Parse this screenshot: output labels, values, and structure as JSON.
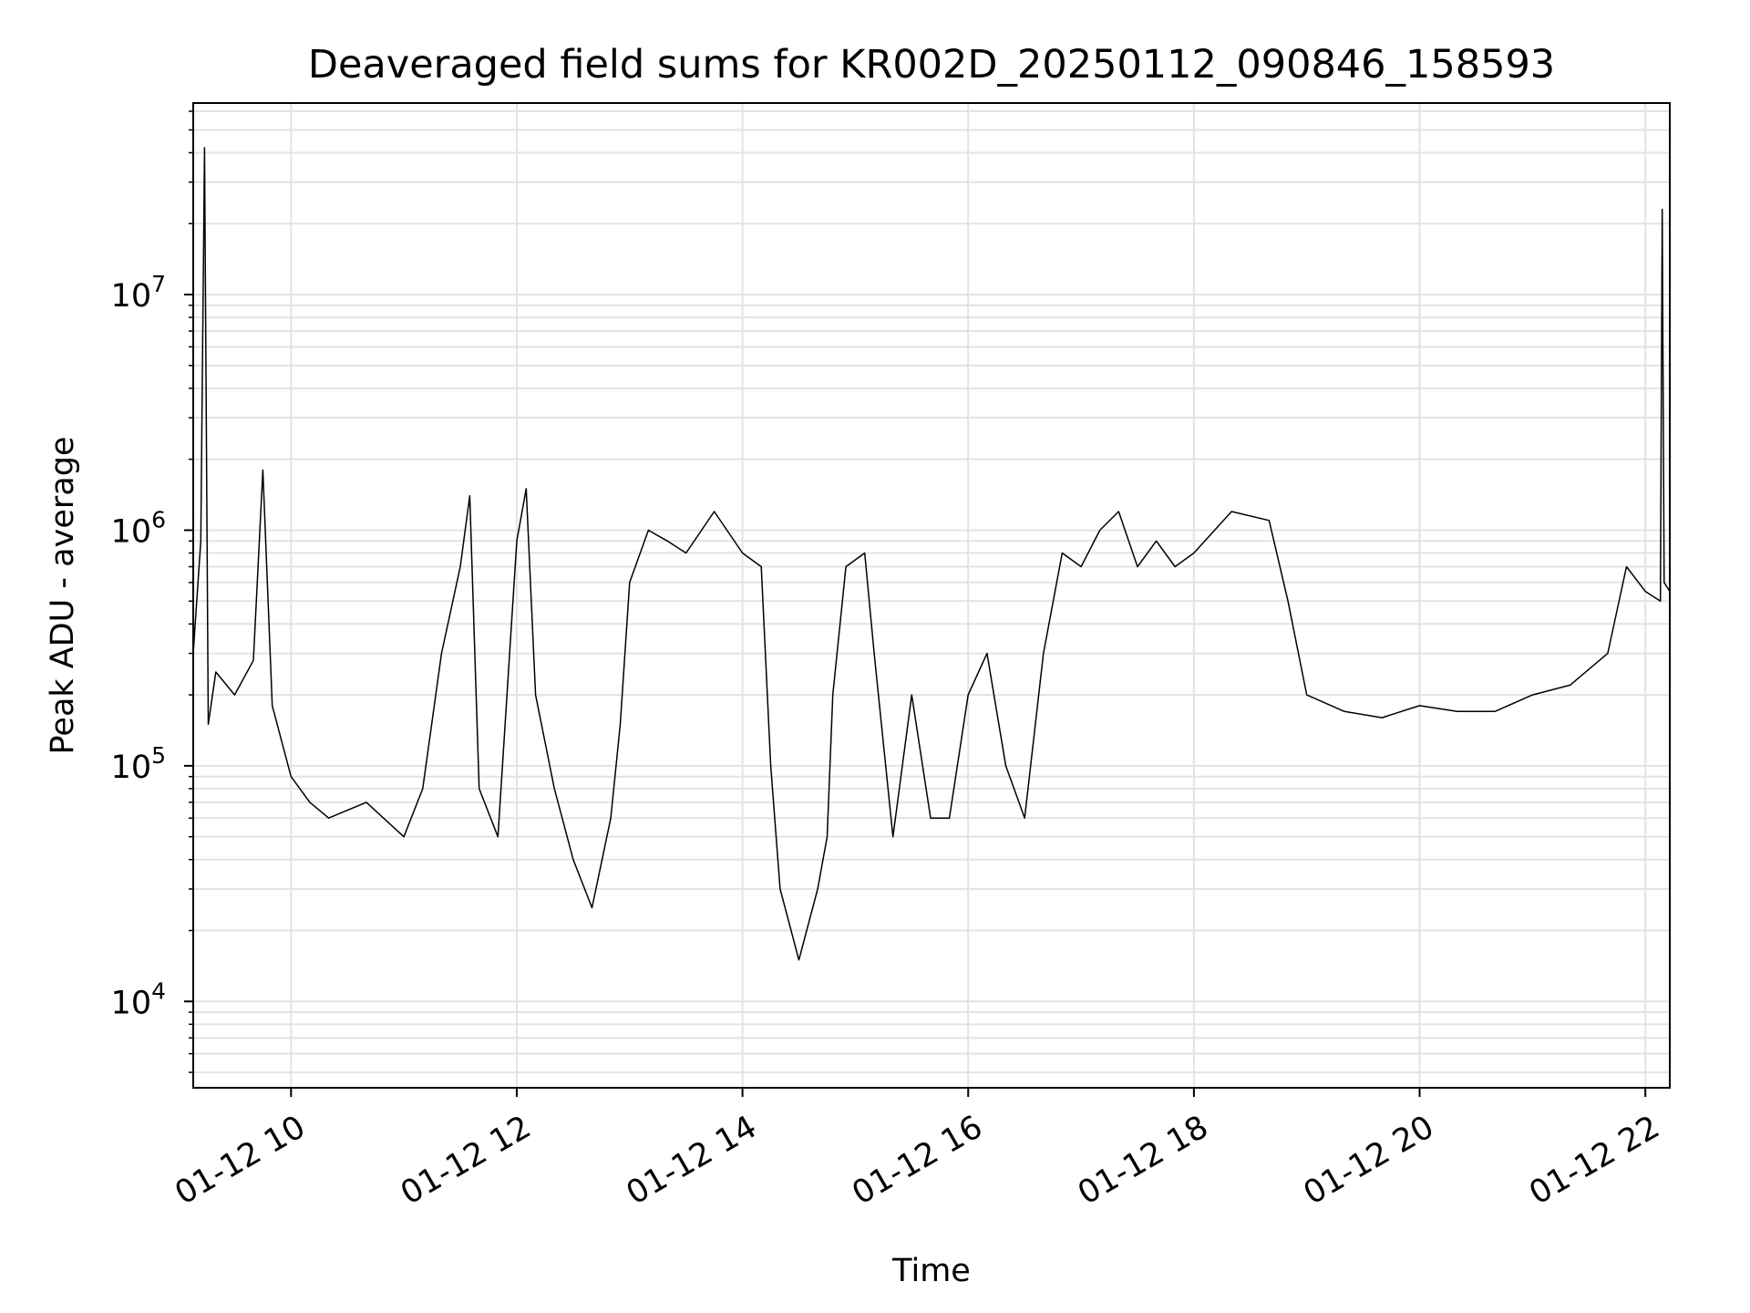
{
  "chart_data": {
    "type": "line",
    "title": "Deaveraged field sums for KR002D_20250112_090846_158593",
    "xlabel": "Time",
    "ylabel": "Peak ADU - average",
    "xlim": [
      "2025-01-12T09:08",
      "2025-01-12T22:13"
    ],
    "ylim": [
      4300,
      65000000
    ],
    "yscale": "log",
    "grid": true,
    "line_color": "#000000",
    "x_ticks": [
      {
        "value": "2025-01-12T10:00",
        "label": "01-12 10"
      },
      {
        "value": "2025-01-12T12:00",
        "label": "01-12 12"
      },
      {
        "value": "2025-01-12T14:00",
        "label": "01-12 14"
      },
      {
        "value": "2025-01-12T16:00",
        "label": "01-12 16"
      },
      {
        "value": "2025-01-12T18:00",
        "label": "01-12 18"
      },
      {
        "value": "2025-01-12T20:00",
        "label": "01-12 20"
      },
      {
        "value": "2025-01-12T22:00",
        "label": "01-12 22"
      }
    ],
    "y_ticks": [
      {
        "value": 10000,
        "base": "10",
        "exp": "4"
      },
      {
        "value": 100000,
        "base": "10",
        "exp": "5"
      },
      {
        "value": 1000000,
        "base": "10",
        "exp": "6"
      },
      {
        "value": 10000000,
        "base": "10",
        "exp": "7"
      }
    ],
    "series": [
      {
        "values": [
          [
            "2025-01-12T09:08",
            300000
          ],
          [
            "2025-01-12T09:12",
            900000
          ],
          [
            "2025-01-12T09:14",
            42000000
          ],
          [
            "2025-01-12T09:16",
            150000
          ],
          [
            "2025-01-12T09:20",
            250000
          ],
          [
            "2025-01-12T09:30",
            200000
          ],
          [
            "2025-01-12T09:40",
            280000
          ],
          [
            "2025-01-12T09:45",
            1800000
          ],
          [
            "2025-01-12T09:50",
            180000
          ],
          [
            "2025-01-12T10:00",
            90000
          ],
          [
            "2025-01-12T10:10",
            70000
          ],
          [
            "2025-01-12T10:20",
            60000
          ],
          [
            "2025-01-12T10:40",
            70000
          ],
          [
            "2025-01-12T11:00",
            50000
          ],
          [
            "2025-01-12T11:10",
            80000
          ],
          [
            "2025-01-12T11:20",
            300000
          ],
          [
            "2025-01-12T11:30",
            700000
          ],
          [
            "2025-01-12T11:35",
            1400000
          ],
          [
            "2025-01-12T11:40",
            80000
          ],
          [
            "2025-01-12T11:50",
            50000
          ],
          [
            "2025-01-12T12:00",
            900000
          ],
          [
            "2025-01-12T12:05",
            1500000
          ],
          [
            "2025-01-12T12:10",
            200000
          ],
          [
            "2025-01-12T12:20",
            80000
          ],
          [
            "2025-01-12T12:30",
            40000
          ],
          [
            "2025-01-12T12:40",
            25000
          ],
          [
            "2025-01-12T12:50",
            60000
          ],
          [
            "2025-01-12T12:55",
            150000
          ],
          [
            "2025-01-12T13:00",
            600000
          ],
          [
            "2025-01-12T13:10",
            1000000
          ],
          [
            "2025-01-12T13:20",
            900000
          ],
          [
            "2025-01-12T13:30",
            800000
          ],
          [
            "2025-01-12T13:45",
            1200000
          ],
          [
            "2025-01-12T14:00",
            800000
          ],
          [
            "2025-01-12T14:10",
            700000
          ],
          [
            "2025-01-12T14:15",
            100000
          ],
          [
            "2025-01-12T14:20",
            30000
          ],
          [
            "2025-01-12T14:30",
            15000
          ],
          [
            "2025-01-12T14:40",
            30000
          ],
          [
            "2025-01-12T14:45",
            50000
          ],
          [
            "2025-01-12T14:48",
            200000
          ],
          [
            "2025-01-12T14:55",
            700000
          ],
          [
            "2025-01-12T15:05",
            800000
          ],
          [
            "2025-01-12T15:10",
            300000
          ],
          [
            "2025-01-12T15:20",
            50000
          ],
          [
            "2025-01-12T15:30",
            200000
          ],
          [
            "2025-01-12T15:40",
            60000
          ],
          [
            "2025-01-12T15:50",
            60000
          ],
          [
            "2025-01-12T16:00",
            200000
          ],
          [
            "2025-01-12T16:10",
            300000
          ],
          [
            "2025-01-12T16:20",
            100000
          ],
          [
            "2025-01-12T16:30",
            60000
          ],
          [
            "2025-01-12T16:40",
            300000
          ],
          [
            "2025-01-12T16:50",
            800000
          ],
          [
            "2025-01-12T17:00",
            700000
          ],
          [
            "2025-01-12T17:10",
            1000000
          ],
          [
            "2025-01-12T17:20",
            1200000
          ],
          [
            "2025-01-12T17:30",
            700000
          ],
          [
            "2025-01-12T17:40",
            900000
          ],
          [
            "2025-01-12T17:50",
            700000
          ],
          [
            "2025-01-12T18:00",
            800000
          ],
          [
            "2025-01-12T18:20",
            1200000
          ],
          [
            "2025-01-12T18:40",
            1100000
          ],
          [
            "2025-01-12T18:50",
            500000
          ],
          [
            "2025-01-12T19:00",
            200000
          ],
          [
            "2025-01-12T19:20",
            170000
          ],
          [
            "2025-01-12T19:40",
            160000
          ],
          [
            "2025-01-12T20:00",
            180000
          ],
          [
            "2025-01-12T20:20",
            170000
          ],
          [
            "2025-01-12T20:40",
            170000
          ],
          [
            "2025-01-12T21:00",
            200000
          ],
          [
            "2025-01-12T21:20",
            220000
          ],
          [
            "2025-01-12T21:40",
            300000
          ],
          [
            "2025-01-12T21:50",
            700000
          ],
          [
            "2025-01-12T22:00",
            550000
          ],
          [
            "2025-01-12T22:08",
            500000
          ],
          [
            "2025-01-12T22:09",
            23000000
          ],
          [
            "2025-01-12T22:10",
            600000
          ],
          [
            "2025-01-12T22:13",
            550000
          ]
        ]
      }
    ]
  }
}
